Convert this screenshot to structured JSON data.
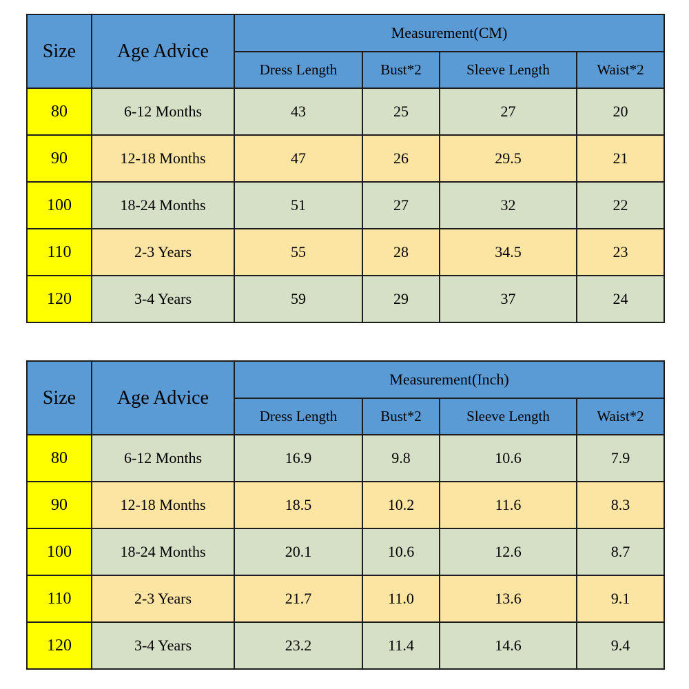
{
  "colors": {
    "header_blue": "#5b9bd5",
    "size_yellow": "#ffff00",
    "row_green": "#d6e0c6",
    "row_tan": "#fce5a2",
    "border_color": "#1c1c1c",
    "text_color": "#000000"
  },
  "tables": [
    {
      "size_header": "Size",
      "age_header": "Age Advice",
      "measurement_label": "Measurement(CM)",
      "columns": [
        "Dress Length",
        "Bust*2",
        "Sleeve Length",
        "Waist*2"
      ],
      "rows": [
        {
          "size": "80",
          "age": "6-12 Months",
          "values": [
            "43",
            "25",
            "27",
            "20"
          ]
        },
        {
          "size": "90",
          "age": "12-18 Months",
          "values": [
            "47",
            "26",
            "29.5",
            "21"
          ]
        },
        {
          "size": "100",
          "age": "18-24 Months",
          "values": [
            "51",
            "27",
            "32",
            "22"
          ]
        },
        {
          "size": "110",
          "age": "2-3 Years",
          "values": [
            "55",
            "28",
            "34.5",
            "23"
          ]
        },
        {
          "size": "120",
          "age": "3-4 Years",
          "values": [
            "59",
            "29",
            "37",
            "24"
          ]
        }
      ]
    },
    {
      "size_header": "Size",
      "age_header": "Age Advice",
      "measurement_label": "Measurement(Inch)",
      "columns": [
        "Dress Length",
        "Bust*2",
        "Sleeve Length",
        "Waist*2"
      ],
      "rows": [
        {
          "size": "80",
          "age": "6-12 Months",
          "values": [
            "16.9",
            "9.8",
            "10.6",
            "7.9"
          ]
        },
        {
          "size": "90",
          "age": "12-18 Months",
          "values": [
            "18.5",
            "10.2",
            "11.6",
            "8.3"
          ]
        },
        {
          "size": "100",
          "age": "18-24 Months",
          "values": [
            "20.1",
            "10.6",
            "12.6",
            "8.7"
          ]
        },
        {
          "size": "110",
          "age": "2-3 Years",
          "values": [
            "21.7",
            "11.0",
            "13.6",
            "9.1"
          ]
        },
        {
          "size": "120",
          "age": "3-4 Years",
          "values": [
            "23.2",
            "11.4",
            "14.6",
            "9.4"
          ]
        }
      ]
    }
  ],
  "chart_data": [
    {
      "type": "table",
      "title": "Measurement(CM)",
      "columns": [
        "Size",
        "Age Advice",
        "Dress Length",
        "Bust*2",
        "Sleeve Length",
        "Waist*2"
      ],
      "rows": [
        [
          "80",
          "6-12 Months",
          "43",
          "25",
          "27",
          "20"
        ],
        [
          "90",
          "12-18 Months",
          "47",
          "26",
          "29.5",
          "21"
        ],
        [
          "100",
          "18-24 Months",
          "51",
          "27",
          "32",
          "22"
        ],
        [
          "110",
          "2-3 Years",
          "55",
          "28",
          "34.5",
          "23"
        ],
        [
          "120",
          "3-4 Years",
          "59",
          "29",
          "37",
          "24"
        ]
      ]
    },
    {
      "type": "table",
      "title": "Measurement(Inch)",
      "columns": [
        "Size",
        "Age Advice",
        "Dress Length",
        "Bust*2",
        "Sleeve Length",
        "Waist*2"
      ],
      "rows": [
        [
          "80",
          "6-12 Months",
          "16.9",
          "9.8",
          "10.6",
          "7.9"
        ],
        [
          "90",
          "12-18 Months",
          "18.5",
          "10.2",
          "11.6",
          "8.3"
        ],
        [
          "100",
          "18-24 Months",
          "20.1",
          "10.6",
          "12.6",
          "8.7"
        ],
        [
          "110",
          "2-3 Years",
          "21.7",
          "11.0",
          "13.6",
          "9.1"
        ],
        [
          "120",
          "3-4 Years",
          "23.2",
          "11.4",
          "14.6",
          "9.4"
        ]
      ]
    }
  ]
}
